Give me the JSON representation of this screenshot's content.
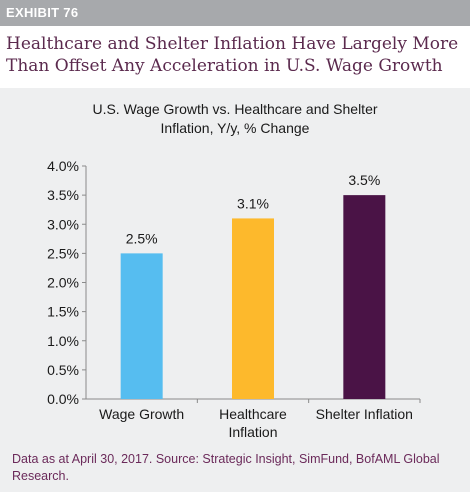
{
  "exhibit_label": "EXHIBIT 76",
  "headline": "Healthcare and Shelter Inflation Have Largely More Than Offset Any Acceleration in U.S. Wage Growth",
  "source_note": "Data as at April 30, 2017. Source: Strategic Insight, SimFund, BofAML Global Research.",
  "colors": {
    "header_bar": "#a7a9ac",
    "panel_background": "#eeeff0",
    "headline_text": "#5b2a4e",
    "source_text": "#6b2a5a"
  },
  "chart_data": {
    "type": "bar",
    "title": "U.S. Wage Growth vs. Healthcare and Shelter Inflation, Y/y, % Change",
    "title_lines": [
      "U.S. Wage Growth vs. Healthcare and Shelter",
      "Inflation, Y/y, % Change"
    ],
    "categories": [
      "Wage Growth",
      "Healthcare Inflation",
      "Shelter Inflation"
    ],
    "category_lines": [
      [
        "Wage Growth"
      ],
      [
        "Healthcare",
        "Inflation"
      ],
      [
        "Shelter Inflation"
      ]
    ],
    "values": [
      2.5,
      3.1,
      3.5
    ],
    "data_labels": [
      "2.5%",
      "3.1%",
      "3.5%"
    ],
    "bar_colors": [
      "#56bdf0",
      "#fdb92c",
      "#4a1346"
    ],
    "ylim": [
      0,
      4.0
    ],
    "yticks": [
      0.0,
      0.5,
      1.0,
      1.5,
      2.0,
      2.5,
      3.0,
      3.5,
      4.0
    ],
    "ytick_labels": [
      "0.0%",
      "0.5%",
      "1.0%",
      "1.5%",
      "2.0%",
      "2.5%",
      "3.0%",
      "3.5%",
      "4.0%"
    ],
    "xlabel": "",
    "ylabel": "",
    "grid": false,
    "legend": "none"
  }
}
